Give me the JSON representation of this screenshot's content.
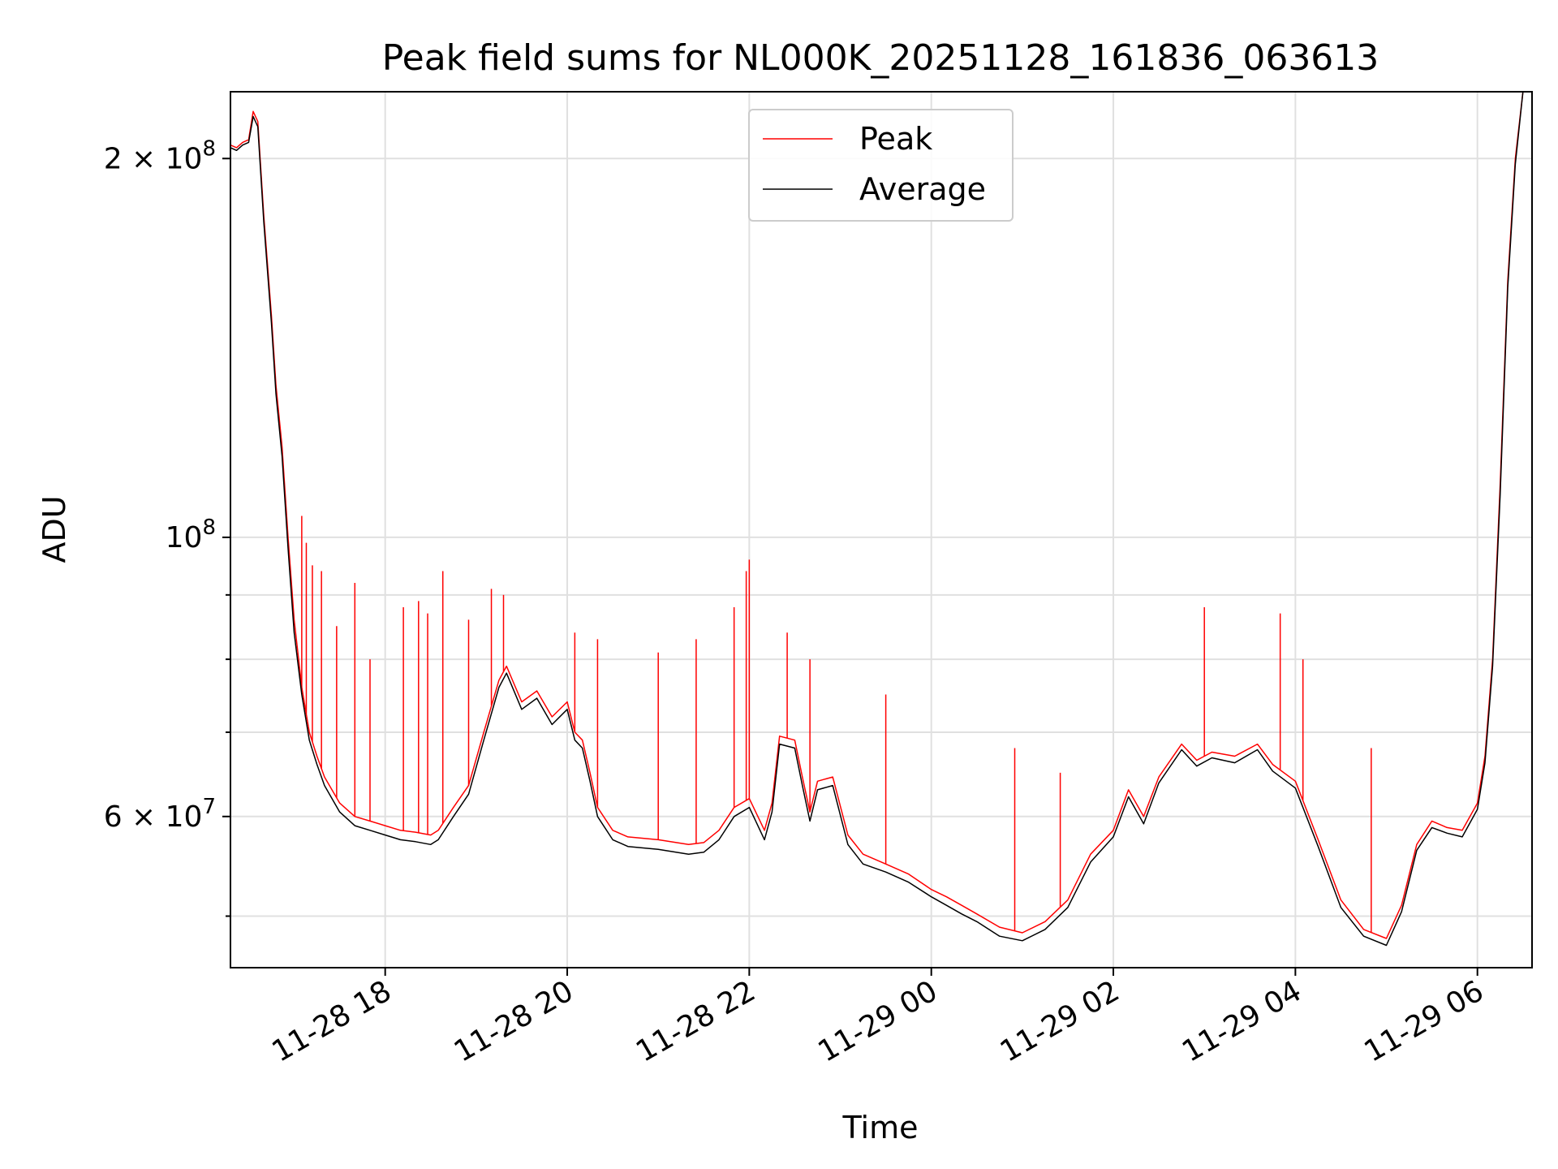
{
  "chart_data": {
    "type": "line",
    "title": "Peak field sums for NL000K_20251128_161836_063613",
    "xlabel": "Time",
    "ylabel": "ADU",
    "yscale": "log",
    "grid": true,
    "legend_position": "upper center",
    "xlim": [
      "2025-11-28 16:18",
      "2025-11-29 06:36"
    ],
    "ylim": [
      45500000,
      226000000
    ],
    "x_ticks": [
      {
        "value": "2025-11-28 18:00",
        "label": "11-28 18"
      },
      {
        "value": "2025-11-28 20:00",
        "label": "11-28 20"
      },
      {
        "value": "2025-11-28 22:00",
        "label": "11-28 22"
      },
      {
        "value": "2025-11-29 00:00",
        "label": "11-29 00"
      },
      {
        "value": "2025-11-29 02:00",
        "label": "11-29 02"
      },
      {
        "value": "2025-11-29 04:00",
        "label": "11-29 04"
      },
      {
        "value": "2025-11-29 06:00",
        "label": "11-29 06"
      }
    ],
    "y_ticks": [
      {
        "value": 200000000,
        "base": "2 × 10",
        "exp": "8"
      },
      {
        "value": 100000000,
        "base": "10",
        "exp": "8"
      },
      {
        "value": 60000000,
        "base": "6 × 10",
        "exp": "7"
      }
    ],
    "y_minor_ticks": [
      50000000,
      70000000,
      80000000,
      90000000
    ],
    "series": [
      {
        "name": "Peak",
        "color": "#ff0000",
        "points": [
          [
            "2025-11-28 16:18",
            205000000
          ],
          [
            "2025-11-28 16:22",
            204000000
          ],
          [
            "2025-11-28 16:26",
            206000000
          ],
          [
            "2025-11-28 16:30",
            207000000
          ],
          [
            "2025-11-28 16:33",
            218000000
          ],
          [
            "2025-11-28 16:36",
            214000000
          ],
          [
            "2025-11-28 16:40",
            180000000
          ],
          [
            "2025-11-28 16:45",
            150000000
          ],
          [
            "2025-11-28 16:48",
            132000000
          ],
          [
            "2025-11-28 16:52",
            118000000
          ],
          [
            "2025-11-28 16:56",
            100000000
          ],
          [
            "2025-11-28 17:00",
            86000000
          ],
          [
            "2025-11-28 17:05",
            76000000
          ],
          [
            "2025-11-28 17:10",
            70000000
          ],
          [
            "2025-11-28 17:15",
            67000000
          ],
          [
            "2025-11-28 17:20",
            64500000
          ],
          [
            "2025-11-28 17:30",
            61500000
          ],
          [
            "2025-11-28 17:40",
            60000000
          ],
          [
            "2025-11-28 17:50",
            59500000
          ],
          [
            "2025-11-28 18:00",
            59000000
          ],
          [
            "2025-11-28 18:10",
            58500000
          ],
          [
            "2025-11-28 18:20",
            58300000
          ],
          [
            "2025-11-28 18:30",
            58000000
          ],
          [
            "2025-11-28 18:35",
            58500000
          ],
          [
            "2025-11-28 18:45",
            61000000
          ],
          [
            "2025-11-28 18:55",
            63500000
          ],
          [
            "2025-11-28 19:05",
            70000000
          ],
          [
            "2025-11-28 19:15",
            77000000
          ],
          [
            "2025-11-28 19:20",
            79000000
          ],
          [
            "2025-11-28 19:30",
            74000000
          ],
          [
            "2025-11-28 19:40",
            75500000
          ],
          [
            "2025-11-28 19:50",
            72000000
          ],
          [
            "2025-11-28 20:00",
            74000000
          ],
          [
            "2025-11-28 20:05",
            70000000
          ],
          [
            "2025-11-28 20:10",
            69000000
          ],
          [
            "2025-11-28 20:15",
            65000000
          ],
          [
            "2025-11-28 20:20",
            61000000
          ],
          [
            "2025-11-28 20:30",
            58500000
          ],
          [
            "2025-11-28 20:40",
            57800000
          ],
          [
            "2025-11-28 21:00",
            57500000
          ],
          [
            "2025-11-28 21:20",
            57000000
          ],
          [
            "2025-11-28 21:30",
            57200000
          ],
          [
            "2025-11-28 21:40",
            58500000
          ],
          [
            "2025-11-28 21:50",
            61000000
          ],
          [
            "2025-11-28 22:00",
            62000000
          ],
          [
            "2025-11-28 22:10",
            58500000
          ],
          [
            "2025-11-28 22:15",
            61500000
          ],
          [
            "2025-11-28 22:20",
            69500000
          ],
          [
            "2025-11-28 22:30",
            69000000
          ],
          [
            "2025-11-28 22:35",
            64500000
          ],
          [
            "2025-11-28 22:40",
            60500000
          ],
          [
            "2025-11-28 22:45",
            64000000
          ],
          [
            "2025-11-28 22:55",
            64500000
          ],
          [
            "2025-11-28 23:05",
            58000000
          ],
          [
            "2025-11-28 23:15",
            56000000
          ],
          [
            "2025-11-28 23:30",
            55000000
          ],
          [
            "2025-11-28 23:45",
            54000000
          ],
          [
            "2025-11-29 00:00",
            52500000
          ],
          [
            "2025-11-29 00:10",
            51800000
          ],
          [
            "2025-11-29 00:20",
            51000000
          ],
          [
            "2025-11-29 00:30",
            50200000
          ],
          [
            "2025-11-29 00:45",
            49000000
          ],
          [
            "2025-11-29 01:00",
            48500000
          ],
          [
            "2025-11-29 01:15",
            49500000
          ],
          [
            "2025-11-29 01:30",
            51500000
          ],
          [
            "2025-11-29 01:45",
            56000000
          ],
          [
            "2025-11-29 02:00",
            58500000
          ],
          [
            "2025-11-29 02:10",
            63000000
          ],
          [
            "2025-11-29 02:20",
            60000000
          ],
          [
            "2025-11-29 02:30",
            64500000
          ],
          [
            "2025-11-29 02:45",
            68500000
          ],
          [
            "2025-11-29 02:55",
            66500000
          ],
          [
            "2025-11-29 03:05",
            67500000
          ],
          [
            "2025-11-29 03:20",
            67000000
          ],
          [
            "2025-11-29 03:35",
            68500000
          ],
          [
            "2025-11-29 03:45",
            66000000
          ],
          [
            "2025-11-29 04:00",
            64000000
          ],
          [
            "2025-11-29 04:15",
            57500000
          ],
          [
            "2025-11-29 04:30",
            51500000
          ],
          [
            "2025-11-29 04:45",
            48800000
          ],
          [
            "2025-11-29 05:00",
            48000000
          ],
          [
            "2025-11-29 05:10",
            51000000
          ],
          [
            "2025-11-29 05:20",
            57000000
          ],
          [
            "2025-11-29 05:30",
            59500000
          ],
          [
            "2025-11-29 05:40",
            58800000
          ],
          [
            "2025-11-29 05:50",
            58500000
          ],
          [
            "2025-11-29 06:00",
            61500000
          ],
          [
            "2025-11-29 06:05",
            67000000
          ],
          [
            "2025-11-29 06:10",
            80000000
          ],
          [
            "2025-11-29 06:15",
            110000000
          ],
          [
            "2025-11-29 06:20",
            160000000
          ],
          [
            "2025-11-29 06:25",
            200000000
          ],
          [
            "2025-11-29 06:30",
            226000000
          ]
        ],
        "spikes": [
          [
            "2025-11-28 17:05",
            104000000
          ],
          [
            "2025-11-28 17:08",
            99000000
          ],
          [
            "2025-11-28 17:12",
            95000000
          ],
          [
            "2025-11-28 17:18",
            94000000
          ],
          [
            "2025-11-28 17:28",
            85000000
          ],
          [
            "2025-11-28 17:40",
            92000000
          ],
          [
            "2025-11-28 17:50",
            80000000
          ],
          [
            "2025-11-28 18:12",
            88000000
          ],
          [
            "2025-11-28 18:22",
            89000000
          ],
          [
            "2025-11-28 18:28",
            87000000
          ],
          [
            "2025-11-28 18:38",
            94000000
          ],
          [
            "2025-11-28 18:55",
            86000000
          ],
          [
            "2025-11-28 19:10",
            91000000
          ],
          [
            "2025-11-28 19:18",
            90000000
          ],
          [
            "2025-11-28 20:05",
            84000000
          ],
          [
            "2025-11-28 20:20",
            83000000
          ],
          [
            "2025-11-28 21:00",
            81000000
          ],
          [
            "2025-11-28 21:25",
            83000000
          ],
          [
            "2025-11-28 21:50",
            88000000
          ],
          [
            "2025-11-28 21:58",
            94000000
          ],
          [
            "2025-11-28 22:00",
            96000000
          ],
          [
            "2025-11-28 22:25",
            84000000
          ],
          [
            "2025-11-28 22:40",
            80000000
          ],
          [
            "2025-11-28 23:30",
            75000000
          ],
          [
            "2025-11-29 00:55",
            68000000
          ],
          [
            "2025-11-29 01:25",
            65000000
          ],
          [
            "2025-11-29 03:00",
            88000000
          ],
          [
            "2025-11-29 03:50",
            87000000
          ],
          [
            "2025-11-29 04:05",
            80000000
          ],
          [
            "2025-11-29 04:50",
            68000000
          ]
        ]
      },
      {
        "name": "Average",
        "color": "#000000",
        "points": [
          [
            "2025-11-28 16:18",
            204000000
          ],
          [
            "2025-11-28 16:22",
            203000000
          ],
          [
            "2025-11-28 16:26",
            205000000
          ],
          [
            "2025-11-28 16:30",
            206000000
          ],
          [
            "2025-11-28 16:33",
            216000000
          ],
          [
            "2025-11-28 16:36",
            212000000
          ],
          [
            "2025-11-28 16:40",
            178000000
          ],
          [
            "2025-11-28 16:45",
            148000000
          ],
          [
            "2025-11-28 16:48",
            130000000
          ],
          [
            "2025-11-28 16:52",
            116000000
          ],
          [
            "2025-11-28 16:56",
            98000000
          ],
          [
            "2025-11-28 17:00",
            84000000
          ],
          [
            "2025-11-28 17:05",
            75000000
          ],
          [
            "2025-11-28 17:10",
            69000000
          ],
          [
            "2025-11-28 17:15",
            66000000
          ],
          [
            "2025-11-28 17:20",
            63500000
          ],
          [
            "2025-11-28 17:30",
            60500000
          ],
          [
            "2025-11-28 17:40",
            59000000
          ],
          [
            "2025-11-28 17:50",
            58500000
          ],
          [
            "2025-11-28 18:00",
            58000000
          ],
          [
            "2025-11-28 18:10",
            57500000
          ],
          [
            "2025-11-28 18:20",
            57300000
          ],
          [
            "2025-11-28 18:30",
            57000000
          ],
          [
            "2025-11-28 18:35",
            57500000
          ],
          [
            "2025-11-28 18:45",
            60000000
          ],
          [
            "2025-11-28 18:55",
            62500000
          ],
          [
            "2025-11-28 19:05",
            69000000
          ],
          [
            "2025-11-28 19:15",
            76000000
          ],
          [
            "2025-11-28 19:20",
            78000000
          ],
          [
            "2025-11-28 19:30",
            73000000
          ],
          [
            "2025-11-28 19:40",
            74500000
          ],
          [
            "2025-11-28 19:50",
            71000000
          ],
          [
            "2025-11-28 20:00",
            73000000
          ],
          [
            "2025-11-28 20:05",
            69000000
          ],
          [
            "2025-11-28 20:10",
            68000000
          ],
          [
            "2025-11-28 20:15",
            64000000
          ],
          [
            "2025-11-28 20:20",
            60000000
          ],
          [
            "2025-11-28 20:30",
            57500000
          ],
          [
            "2025-11-28 20:40",
            56800000
          ],
          [
            "2025-11-28 21:00",
            56500000
          ],
          [
            "2025-11-28 21:20",
            56000000
          ],
          [
            "2025-11-28 21:30",
            56200000
          ],
          [
            "2025-11-28 21:40",
            57500000
          ],
          [
            "2025-11-28 21:50",
            60000000
          ],
          [
            "2025-11-28 22:00",
            61000000
          ],
          [
            "2025-11-28 22:10",
            57500000
          ],
          [
            "2025-11-28 22:15",
            60500000
          ],
          [
            "2025-11-28 22:20",
            68500000
          ],
          [
            "2025-11-28 22:30",
            68000000
          ],
          [
            "2025-11-28 22:35",
            63500000
          ],
          [
            "2025-11-28 22:40",
            59500000
          ],
          [
            "2025-11-28 22:45",
            63000000
          ],
          [
            "2025-11-28 22:55",
            63500000
          ],
          [
            "2025-11-28 23:05",
            57000000
          ],
          [
            "2025-11-28 23:15",
            55000000
          ],
          [
            "2025-11-28 23:30",
            54200000
          ],
          [
            "2025-11-28 23:45",
            53200000
          ],
          [
            "2025-11-29 00:00",
            51800000
          ],
          [
            "2025-11-29 00:10",
            51000000
          ],
          [
            "2025-11-29 00:20",
            50200000
          ],
          [
            "2025-11-29 00:30",
            49500000
          ],
          [
            "2025-11-29 00:45",
            48200000
          ],
          [
            "2025-11-29 01:00",
            47800000
          ],
          [
            "2025-11-29 01:15",
            48800000
          ],
          [
            "2025-11-29 01:30",
            50800000
          ],
          [
            "2025-11-29 01:45",
            55200000
          ],
          [
            "2025-11-29 02:00",
            57800000
          ],
          [
            "2025-11-29 02:10",
            62200000
          ],
          [
            "2025-11-29 02:20",
            59200000
          ],
          [
            "2025-11-29 02:30",
            63800000
          ],
          [
            "2025-11-29 02:45",
            67800000
          ],
          [
            "2025-11-29 02:55",
            65800000
          ],
          [
            "2025-11-29 03:05",
            66800000
          ],
          [
            "2025-11-29 03:20",
            66200000
          ],
          [
            "2025-11-29 03:35",
            67800000
          ],
          [
            "2025-11-29 03:45",
            65200000
          ],
          [
            "2025-11-29 04:00",
            63200000
          ],
          [
            "2025-11-29 04:15",
            56800000
          ],
          [
            "2025-11-29 04:30",
            50800000
          ],
          [
            "2025-11-29 04:45",
            48200000
          ],
          [
            "2025-11-29 05:00",
            47400000
          ],
          [
            "2025-11-29 05:10",
            50400000
          ],
          [
            "2025-11-29 05:20",
            56400000
          ],
          [
            "2025-11-29 05:30",
            58800000
          ],
          [
            "2025-11-29 05:40",
            58200000
          ],
          [
            "2025-11-29 05:50",
            57800000
          ],
          [
            "2025-11-29 06:00",
            60800000
          ],
          [
            "2025-11-29 06:05",
            66200000
          ],
          [
            "2025-11-29 06:10",
            79000000
          ],
          [
            "2025-11-29 06:15",
            108000000
          ],
          [
            "2025-11-29 06:20",
            158000000
          ],
          [
            "2025-11-29 06:25",
            198000000
          ],
          [
            "2025-11-29 06:30",
            226000000
          ]
        ]
      }
    ]
  }
}
